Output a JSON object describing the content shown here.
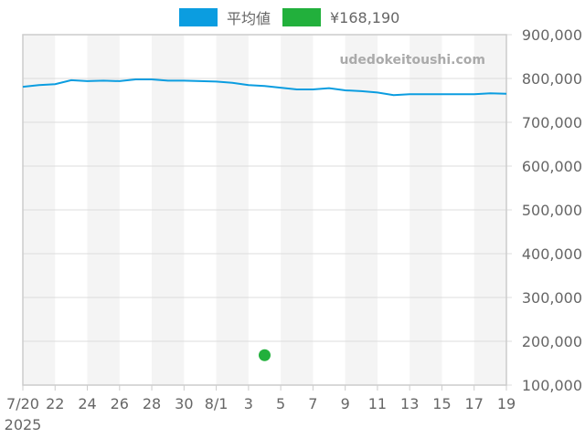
{
  "legend": {
    "items": [
      {
        "label": "平均値",
        "color": "#0b9de0"
      },
      {
        "label": "¥168,190",
        "color": "#22b03c"
      }
    ]
  },
  "watermark": "udedokeitoushi.com",
  "chart_data": {
    "type": "line",
    "title": "",
    "xlabel": "",
    "ylabel": "",
    "x_tick_labels": [
      "7/20",
      "22",
      "24",
      "26",
      "28",
      "30",
      "8/1",
      "3",
      "5",
      "7",
      "9",
      "11",
      "13",
      "15",
      "17",
      "19"
    ],
    "x_year_label": "2025",
    "y_tick_labels": [
      "900,000",
      "800,000",
      "700,000",
      "600,000",
      "500,000",
      "400,000",
      "300,000",
      "200,000",
      "100,000"
    ],
    "ylim": [
      100000,
      900000
    ],
    "y_axis_position": "right",
    "grid": true,
    "legend_position": "top",
    "x": [
      "2025-07-20",
      "2025-07-21",
      "2025-07-22",
      "2025-07-23",
      "2025-07-24",
      "2025-07-25",
      "2025-07-26",
      "2025-07-27",
      "2025-07-28",
      "2025-07-29",
      "2025-07-30",
      "2025-07-31",
      "2025-08-01",
      "2025-08-02",
      "2025-08-03",
      "2025-08-04",
      "2025-08-05",
      "2025-08-06",
      "2025-08-07",
      "2025-08-08",
      "2025-08-09",
      "2025-08-10",
      "2025-08-11",
      "2025-08-12",
      "2025-08-13",
      "2025-08-14",
      "2025-08-15",
      "2025-08-16",
      "2025-08-17",
      "2025-08-18",
      "2025-08-19"
    ],
    "series": [
      {
        "name": "平均値",
        "type": "line",
        "color": "#0b9de0",
        "values": [
          781000,
          785000,
          787000,
          796000,
          794000,
          795000,
          794000,
          798000,
          798000,
          795000,
          795000,
          794000,
          793000,
          790000,
          785000,
          783000,
          779000,
          775000,
          775000,
          778000,
          773000,
          771000,
          768000,
          762000,
          764000,
          764000,
          764000,
          764000,
          764000,
          766000,
          765000
        ]
      },
      {
        "name": "¥168,190",
        "type": "scatter",
        "color": "#22b03c",
        "points": [
          {
            "x": "2025-08-04",
            "y": 168190
          }
        ]
      }
    ]
  }
}
